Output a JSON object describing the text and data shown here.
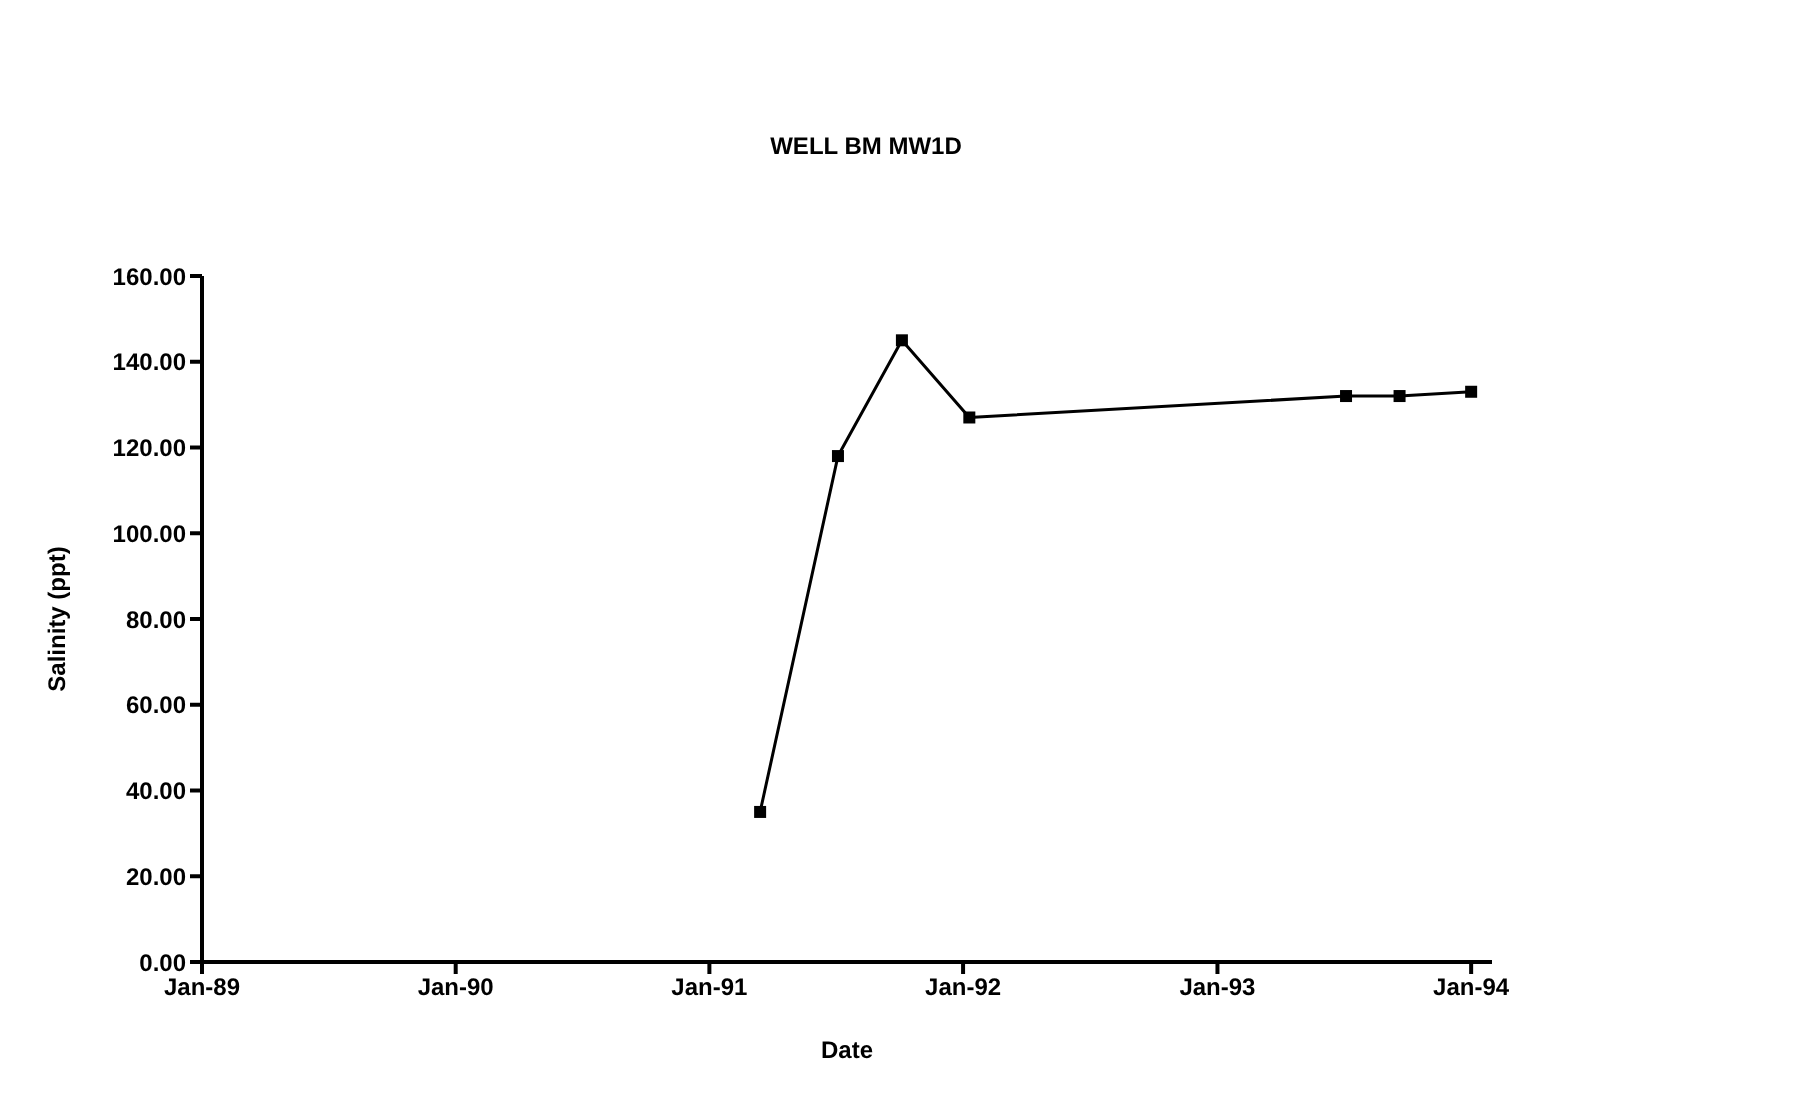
{
  "chart_data": {
    "type": "line",
    "title": "WELL BM MW1D",
    "xlabel": "Date",
    "ylabel": "Salinity (ppt)",
    "x": [
      "1991-03-15",
      "1991-07-05",
      "1991-10-05",
      "1992-01-10",
      "1993-07-05",
      "1993-09-20",
      "1994-01-01"
    ],
    "series": [
      {
        "color": "#000000",
        "values": [
          35,
          118,
          145,
          127,
          132,
          132,
          133
        ]
      }
    ],
    "xlim": [
      "1989-01-01",
      "1994-01-31"
    ],
    "xticks": [
      {
        "value": "1989-01-01",
        "label": "Jan-89"
      },
      {
        "value": "1990-01-01",
        "label": "Jan-90"
      },
      {
        "value": "1991-01-01",
        "label": "Jan-91"
      },
      {
        "value": "1992-01-01",
        "label": "Jan-92"
      },
      {
        "value": "1993-01-01",
        "label": "Jan-93"
      },
      {
        "value": "1994-01-01",
        "label": "Jan-94"
      }
    ],
    "ylim": [
      0,
      160
    ],
    "yticks": [
      {
        "value": 0,
        "label": "0.00"
      },
      {
        "value": 20,
        "label": "20.00"
      },
      {
        "value": 40,
        "label": "40.00"
      },
      {
        "value": 60,
        "label": "60.00"
      },
      {
        "value": 80,
        "label": "80.00"
      },
      {
        "value": 100,
        "label": "100.00"
      },
      {
        "value": 120,
        "label": "120.00"
      },
      {
        "value": 140,
        "label": "140.00"
      },
      {
        "value": 160,
        "label": "160.00"
      }
    ],
    "marker": "square",
    "line_style": "solid",
    "grid": false
  }
}
